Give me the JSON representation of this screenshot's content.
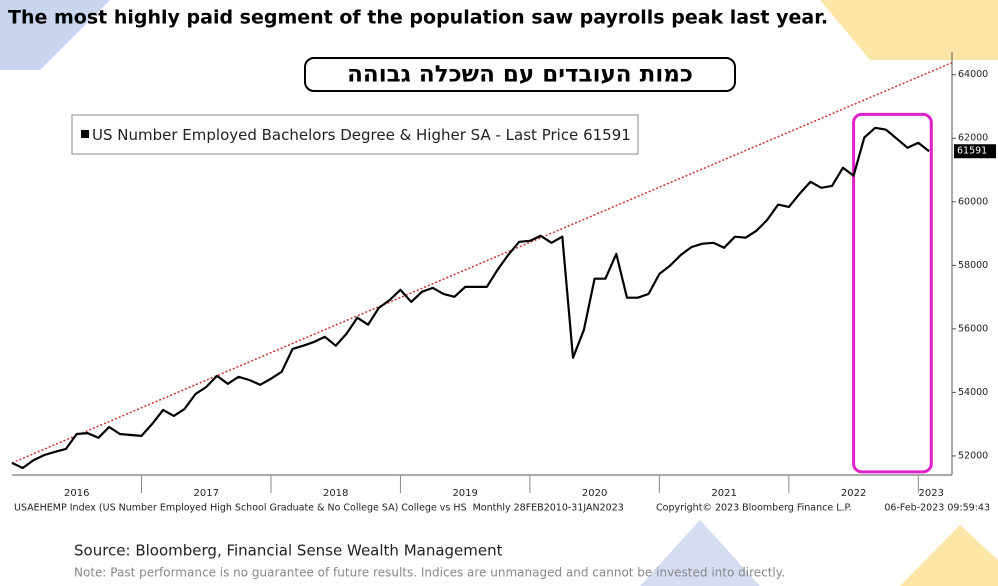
{
  "chart_data": {
    "type": "line",
    "title": "The most highly paid segment of the population saw payrolls peak last year.",
    "subtitle": "כמות העובדים עם השכלה גבוהה",
    "legend_suffix": " - Last Price ",
    "x": [
      2016,
      2016.083,
      2016.167,
      2016.25,
      2016.333,
      2016.417,
      2016.5,
      2016.583,
      2016.667,
      2016.75,
      2016.833,
      2016.917,
      2017,
      2017.083,
      2017.167,
      2017.25,
      2017.333,
      2017.417,
      2017.5,
      2017.583,
      2017.667,
      2017.75,
      2017.833,
      2017.917,
      2018,
      2018.083,
      2018.167,
      2018.25,
      2018.333,
      2018.417,
      2018.5,
      2018.583,
      2018.667,
      2018.75,
      2018.833,
      2018.917,
      2019,
      2019.083,
      2019.167,
      2019.25,
      2019.333,
      2019.417,
      2019.5,
      2019.583,
      2019.667,
      2019.75,
      2019.833,
      2019.917,
      2020,
      2020.083,
      2020.167,
      2020.25,
      2020.333,
      2020.417,
      2020.5,
      2020.583,
      2020.667,
      2020.75,
      2020.833,
      2020.917,
      2021,
      2021.083,
      2021.167,
      2021.25,
      2021.333,
      2021.417,
      2021.5,
      2021.583,
      2021.667,
      2021.75,
      2021.833,
      2021.917,
      2022,
      2022.083,
      2022.167,
      2022.25,
      2022.333,
      2022.417,
      2022.5,
      2022.583,
      2022.667,
      2022.75,
      2022.833,
      2022.917,
      2023,
      2023.083
    ],
    "series": [
      {
        "name": "US Number Employed Bachelors Degree & Higher SA",
        "color": "#000000",
        "values": [
          51780,
          51620,
          51870,
          52030,
          52130,
          52220,
          52690,
          52720,
          52570,
          52910,
          52690,
          52660,
          52630,
          53010,
          53450,
          53260,
          53480,
          53950,
          54170,
          54520,
          54270,
          54490,
          54390,
          54240,
          54430,
          54650,
          55370,
          55470,
          55590,
          55750,
          55470,
          55840,
          56350,
          56130,
          56660,
          56910,
          57230,
          56850,
          57170,
          57290,
          57100,
          57010,
          57320,
          57320,
          57320,
          57860,
          58330,
          58740,
          58770,
          58930,
          58710,
          58900,
          55090,
          55970,
          57580,
          57580,
          58360,
          56980,
          56980,
          57100,
          57730,
          57990,
          58330,
          58580,
          58680,
          58710,
          58550,
          58900,
          58870,
          59090,
          59430,
          59910,
          59840,
          60250,
          60630,
          60440,
          60500,
          61070,
          60820,
          62020,
          62330,
          62270,
          61990,
          61700,
          61860,
          61591
        ]
      }
    ],
    "trendline": {
      "color": "#d03030",
      "x": [
        2016,
        2023.26
      ],
      "values": [
        51780,
        64380
      ]
    },
    "highlight": {
      "color": "#e020c8",
      "xlim": [
        2022.5,
        2023.1
      ],
      "ylim": [
        51500,
        62750
      ]
    },
    "xlim": [
      2016,
      2023.26
    ],
    "xticks": [
      {
        "value": 2016.5,
        "label": "2016"
      },
      {
        "value": 2017.5,
        "label": "2017"
      },
      {
        "value": 2018.5,
        "label": "2018"
      },
      {
        "value": 2019.5,
        "label": "2019"
      },
      {
        "value": 2020.5,
        "label": "2020"
      },
      {
        "value": 2021.5,
        "label": "2021"
      },
      {
        "value": 2022.5,
        "label": "2022"
      },
      {
        "value": 2023.1,
        "label": "2023"
      }
    ],
    "ylim": [
      51400,
      64400
    ],
    "yticks": [
      52000,
      54000,
      56000,
      58000,
      60000,
      62000,
      64000
    ],
    "footer_left": "USAEHEMP Index (US Number Employed High School Graduate & No College SA) College vs HS  Monthly 28FEB2010-31JAN2023",
    "footer_mid": "Copyright© 2023 Bloomberg Finance L.P.",
    "footer_right": "06-Feb-2023 09:59:43",
    "source": "Source: Bloomberg, Financial Sense Wealth Management",
    "note": "Note: Past performance is no guarantee of future results. Indices are unmanaged and cannot be invested into directly."
  }
}
